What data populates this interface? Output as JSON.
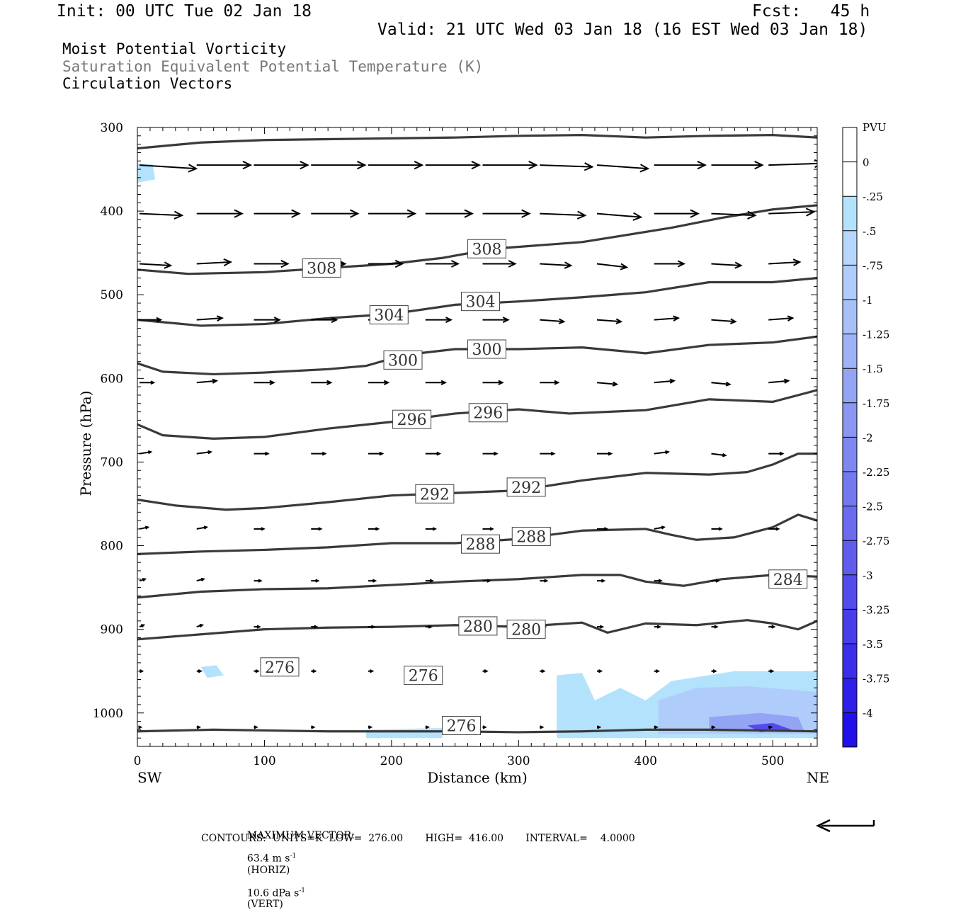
{
  "header": {
    "init": "Init: 00 UTC Tue 02 Jan 18",
    "fcst": "Fcst:   45 h",
    "valid": "Valid: 21 UTC Wed 03 Jan 18 (16 EST Wed 03 Jan 18)",
    "fields": [
      "Moist Potential Vorticity",
      "Saturation Equivalent Potential Temperature (K)",
      "Circulation Vectors"
    ]
  },
  "chart_data": {
    "type": "cross-section",
    "xlabel": "Distance (km)",
    "ylabel": "Pressure (hPa)",
    "xlim": [
      0,
      535
    ],
    "ylim": [
      1040,
      300
    ],
    "x_ticks": [
      "0",
      "100",
      "200",
      "300",
      "400",
      "500"
    ],
    "y_ticks": [
      "300",
      "400",
      "500",
      "600",
      "700",
      "800",
      "900",
      "1000"
    ],
    "x_end_labels": {
      "left": "SW",
      "right": "NE"
    },
    "colorbar": {
      "unit": "PVU",
      "labels": [
        "0",
        "-.25",
        "-.5",
        "-.75",
        "-1",
        "-1.25",
        "-1.5",
        "-1.75",
        "-2",
        "-2.25",
        "-2.5",
        "-2.75",
        "-3",
        "-3.25",
        "-3.5",
        "-3.75",
        "-4"
      ],
      "colors": [
        "#ffffff",
        "#ffffff",
        "#b3e2fd",
        "#b6d6fb",
        "#b0ccfa",
        "#a8c0f8",
        "#9eb2f6",
        "#94a4f4",
        "#8a96f2",
        "#7f88f1",
        "#7479ef",
        "#6a6bee",
        "#5f5cee",
        "#534ced",
        "#473deb",
        "#3b2eea",
        "#2e1fe9",
        "#2010ea"
      ]
    },
    "contours": [
      {
        "label": "276",
        "points": [
          [
            0,
            1022
          ],
          [
            60,
            1020
          ],
          [
            150,
            1022
          ],
          [
            250,
            1022
          ],
          [
            300,
            1023
          ],
          [
            350,
            1022
          ],
          [
            400,
            1020
          ],
          [
            450,
            1020
          ],
          [
            535,
            1022
          ]
        ],
        "label_positions": [
          [
            112,
            945
          ],
          [
            225,
            955
          ],
          [
            255,
            1015
          ]
        ]
      },
      {
        "label": "280",
        "points": [
          [
            0,
            912
          ],
          [
            50,
            906
          ],
          [
            100,
            900
          ],
          [
            150,
            898
          ],
          [
            200,
            897
          ],
          [
            250,
            895
          ],
          [
            300,
            897
          ],
          [
            350,
            892
          ],
          [
            370,
            904
          ],
          [
            400,
            893
          ],
          [
            440,
            895
          ],
          [
            480,
            889
          ],
          [
            500,
            893
          ],
          [
            520,
            900
          ],
          [
            535,
            890
          ]
        ],
        "label_positions": [
          [
            268,
            896
          ],
          [
            306,
            900
          ]
        ]
      },
      {
        "label": "284",
        "points": [
          [
            0,
            862
          ],
          [
            50,
            855
          ],
          [
            100,
            852
          ],
          [
            150,
            851
          ],
          [
            200,
            847
          ],
          [
            250,
            843
          ],
          [
            300,
            840
          ],
          [
            350,
            835
          ],
          [
            380,
            835
          ],
          [
            400,
            843
          ],
          [
            430,
            848
          ],
          [
            460,
            840
          ],
          [
            500,
            835
          ],
          [
            535,
            837
          ]
        ],
        "label_positions": [
          [
            512,
            840
          ]
        ]
      },
      {
        "label": "288",
        "points": [
          [
            0,
            810
          ],
          [
            50,
            807
          ],
          [
            100,
            805
          ],
          [
            150,
            802
          ],
          [
            200,
            797
          ],
          [
            250,
            797
          ],
          [
            300,
            792
          ],
          [
            350,
            782
          ],
          [
            400,
            780
          ],
          [
            420,
            787
          ],
          [
            440,
            793
          ],
          [
            470,
            790
          ],
          [
            500,
            778
          ],
          [
            520,
            763
          ],
          [
            535,
            770
          ]
        ],
        "label_positions": [
          [
            270,
            798
          ],
          [
            310,
            789
          ]
        ]
      },
      {
        "label": "292",
        "points": [
          [
            0,
            745
          ],
          [
            30,
            752
          ],
          [
            70,
            757
          ],
          [
            100,
            755
          ],
          [
            150,
            748
          ],
          [
            200,
            740
          ],
          [
            250,
            737
          ],
          [
            300,
            734
          ],
          [
            350,
            722
          ],
          [
            400,
            713
          ],
          [
            450,
            715
          ],
          [
            480,
            712
          ],
          [
            500,
            703
          ],
          [
            520,
            690
          ],
          [
            535,
            690
          ]
        ],
        "label_positions": [
          [
            234,
            738
          ],
          [
            306,
            730
          ]
        ]
      },
      {
        "label": "296",
        "points": [
          [
            0,
            655
          ],
          [
            20,
            668
          ],
          [
            60,
            672
          ],
          [
            100,
            670
          ],
          [
            150,
            660
          ],
          [
            200,
            652
          ],
          [
            250,
            642
          ],
          [
            300,
            637
          ],
          [
            340,
            642
          ],
          [
            400,
            638
          ],
          [
            450,
            625
          ],
          [
            500,
            628
          ],
          [
            535,
            614
          ]
        ],
        "label_positions": [
          [
            216,
            649
          ],
          [
            276,
            641
          ]
        ]
      },
      {
        "label": "300",
        "points": [
          [
            0,
            582
          ],
          [
            20,
            592
          ],
          [
            60,
            595
          ],
          [
            100,
            593
          ],
          [
            150,
            589
          ],
          [
            180,
            585
          ],
          [
            210,
            572
          ],
          [
            250,
            565
          ],
          [
            300,
            565
          ],
          [
            350,
            563
          ],
          [
            400,
            570
          ],
          [
            450,
            560
          ],
          [
            500,
            557
          ],
          [
            535,
            550
          ]
        ],
        "label_positions": [
          [
            209,
            578
          ],
          [
            275,
            565
          ]
        ]
      },
      {
        "label": "304",
        "points": [
          [
            0,
            530
          ],
          [
            50,
            537
          ],
          [
            100,
            535
          ],
          [
            150,
            528
          ],
          [
            200,
            523
          ],
          [
            250,
            512
          ],
          [
            300,
            508
          ],
          [
            350,
            503
          ],
          [
            400,
            497
          ],
          [
            450,
            485
          ],
          [
            500,
            485
          ],
          [
            535,
            480
          ]
        ],
        "label_positions": [
          [
            198,
            524
          ],
          [
            270,
            508
          ]
        ]
      },
      {
        "label": "308",
        "points": [
          [
            0,
            470
          ],
          [
            40,
            475
          ],
          [
            100,
            473
          ],
          [
            150,
            468
          ],
          [
            200,
            463
          ],
          [
            240,
            456
          ],
          [
            280,
            445
          ],
          [
            350,
            437
          ],
          [
            420,
            420
          ],
          [
            460,
            408
          ],
          [
            500,
            398
          ],
          [
            535,
            393
          ]
        ],
        "label_positions": [
          [
            145,
            468
          ],
          [
            275,
            445
          ]
        ]
      },
      {
        "label": "",
        "points": [
          [
            0,
            325
          ],
          [
            50,
            318
          ],
          [
            100,
            315
          ],
          [
            150,
            314
          ],
          [
            200,
            313
          ],
          [
            250,
            312
          ],
          [
            300,
            310
          ],
          [
            350,
            309
          ],
          [
            400,
            312
          ],
          [
            450,
            310
          ],
          [
            500,
            309
          ],
          [
            535,
            312
          ]
        ],
        "label_positions": []
      }
    ],
    "shading": [
      {
        "level": "-.25",
        "polygon": [
          [
            0,
            343
          ],
          [
            12,
            344
          ],
          [
            14,
            362
          ],
          [
            0,
            366
          ]
        ]
      },
      {
        "level": "-.25",
        "polygon": [
          [
            50,
            945
          ],
          [
            62,
            943
          ],
          [
            68,
            955
          ],
          [
            55,
            958
          ]
        ]
      },
      {
        "level": "-.25",
        "polygon": [
          [
            330,
            955
          ],
          [
            350,
            952
          ],
          [
            360,
            985
          ],
          [
            380,
            970
          ],
          [
            400,
            985
          ],
          [
            420,
            962
          ],
          [
            470,
            950
          ],
          [
            535,
            950
          ],
          [
            535,
            1030
          ],
          [
            330,
            1030
          ]
        ]
      },
      {
        "level": "-.25",
        "polygon": [
          [
            180,
            1020
          ],
          [
            240,
            1018
          ],
          [
            240,
            1030
          ],
          [
            180,
            1030
          ]
        ]
      },
      {
        "level": "-.75",
        "polygon": [
          [
            410,
            985
          ],
          [
            440,
            970
          ],
          [
            480,
            968
          ],
          [
            535,
            975
          ],
          [
            535,
            1025
          ],
          [
            410,
            1025
          ]
        ]
      },
      {
        "level": "-1.5",
        "polygon": [
          [
            450,
            1005
          ],
          [
            490,
            1000
          ],
          [
            520,
            1005
          ],
          [
            525,
            1022
          ],
          [
            450,
            1022
          ]
        ]
      },
      {
        "level": "-3",
        "polygon": [
          [
            480,
            1015
          ],
          [
            500,
            1012
          ],
          [
            515,
            1020
          ],
          [
            490,
            1023
          ]
        ]
      }
    ],
    "vectors": {
      "levels": [
        345,
        403,
        463,
        530,
        605,
        690,
        780,
        842,
        897,
        950,
        1017
      ],
      "x_positions": [
        0,
        45,
        90,
        135,
        180,
        225,
        270,
        315,
        360,
        405,
        450,
        495
      ],
      "u": [
        [
          40,
          38,
          38,
          38,
          38,
          38,
          38,
          37,
          36,
          36,
          36,
          38
        ],
        [
          30,
          32,
          32,
          33,
          33,
          33,
          33,
          32,
          31,
          31,
          31,
          32
        ],
        [
          22,
          24,
          24,
          24,
          24,
          23,
          23,
          22,
          21,
          21,
          21,
          22
        ],
        [
          15,
          18,
          18,
          18,
          18,
          18,
          18,
          17,
          17,
          17,
          17,
          17
        ],
        [
          10,
          14,
          14,
          14,
          14,
          14,
          14,
          13,
          14,
          14,
          13,
          14
        ],
        [
          8,
          10,
          10,
          10,
          10,
          10,
          10,
          10,
          10,
          10,
          10,
          10
        ],
        [
          6,
          7,
          7,
          7,
          7,
          7,
          7,
          7,
          7,
          7,
          7,
          7
        ],
        [
          4,
          5,
          5,
          5,
          5,
          5,
          5,
          5,
          5,
          5,
          5,
          5
        ],
        [
          3,
          4,
          4,
          4,
          4,
          4,
          4,
          4,
          4,
          4,
          4,
          4
        ],
        [
          2,
          3,
          3,
          3,
          3,
          3,
          3,
          3,
          3,
          3,
          3,
          3
        ],
        [
          1,
          2,
          2,
          2,
          2,
          2,
          2,
          2,
          2,
          2,
          2,
          2
        ]
      ],
      "w": [
        [
          -2,
          0,
          0,
          0,
          0,
          0,
          0,
          -1,
          -2,
          0,
          0,
          1
        ],
        [
          -1,
          0,
          0,
          0,
          0,
          0,
          0,
          -1,
          -2,
          0,
          -1,
          1
        ],
        [
          -1,
          1,
          0,
          0,
          0,
          0,
          0,
          -1,
          -2,
          0,
          -1,
          1
        ],
        [
          0,
          1,
          0,
          0,
          0,
          0,
          0,
          -1,
          -1,
          1,
          -1,
          1
        ],
        [
          0,
          1,
          0,
          0,
          0,
          0,
          0,
          0,
          -1,
          1,
          -1,
          1
        ],
        [
          1,
          1,
          0,
          0,
          0,
          0,
          0,
          0,
          0,
          1,
          -1,
          0
        ],
        [
          1,
          1,
          0,
          0,
          0,
          0,
          0,
          0,
          0,
          1,
          0,
          0
        ],
        [
          1,
          1,
          0,
          0,
          0,
          0,
          0,
          0,
          0,
          0,
          0,
          0
        ],
        [
          1,
          1,
          0,
          0,
          0,
          0,
          0,
          0,
          0,
          0,
          0,
          0
        ],
        [
          0,
          0,
          0,
          0,
          0,
          0,
          0,
          0,
          0,
          0,
          0,
          0
        ],
        [
          0,
          0,
          0,
          0,
          0,
          0,
          0,
          0,
          0,
          0,
          0,
          0
        ]
      ]
    }
  },
  "footer": {
    "max_vector_label": "MAXIMUM VECTOR:",
    "horiz": "63.4 m s",
    "horiz_unit": "(HORIZ)",
    "vert": "10.6 dPa s",
    "vert_unit": "(VERT)",
    "exponent": "-1",
    "contours_line": "CONTOURS:  UNITS=K  LOW=  276.00       HIGH=  416.00       INTERVAL=    4.0000"
  }
}
